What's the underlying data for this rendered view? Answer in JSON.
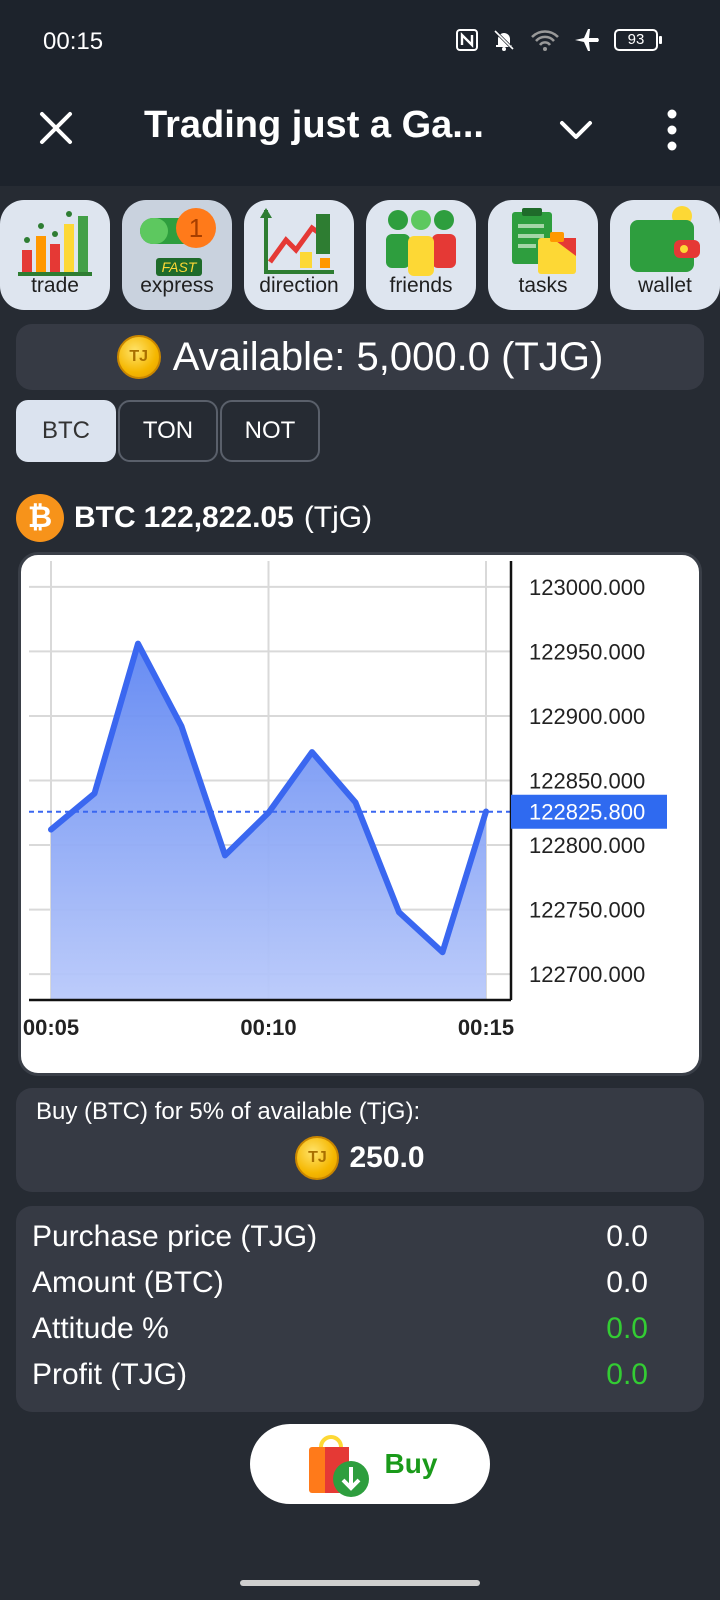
{
  "status_bar": {
    "time": "00:15",
    "battery": "93"
  },
  "header": {
    "title": "Trading just a Ga..."
  },
  "tabs": [
    {
      "label": "trade",
      "icon": "bar-chart-icon"
    },
    {
      "label": "express",
      "icon": "fast-express-icon",
      "badge": "1",
      "badge_text": "FAST"
    },
    {
      "label": "direction",
      "icon": "direction-chart-icon"
    },
    {
      "label": "friends",
      "icon": "friends-icon"
    },
    {
      "label": "tasks",
      "icon": "tasks-icon"
    },
    {
      "label": "wallet",
      "icon": "wallet-icon"
    }
  ],
  "coin_symbol": "TJG",
  "available": {
    "text": "Available: 5,000.0 (TJG)"
  },
  "assets": [
    "BTC",
    "TON",
    "NOT"
  ],
  "price": {
    "symbol": "BTC",
    "value": "122,822.05",
    "unit": "(TjG)"
  },
  "chart_data": {
    "type": "area",
    "x": [
      "00:05",
      "00:06",
      "00:07",
      "00:08",
      "00:09",
      "00:10",
      "00:11",
      "00:12",
      "00:13",
      "00:14",
      "00:15"
    ],
    "values": [
      122812,
      122840,
      122956,
      122892,
      122792,
      122825,
      122872,
      122833,
      122748,
      122717,
      122826
    ],
    "x_tick_labels": [
      "00:05",
      "00:10",
      "00:15"
    ],
    "y_tick_labels": [
      "123000.000",
      "122950.000",
      "122900.000",
      "122850.000",
      "122800.000",
      "122750.000",
      "122700.000"
    ],
    "ylim": [
      122680,
      123020
    ],
    "current_value": "122825.800",
    "current": 122825.8,
    "grid": true,
    "line_color": "#3a67f0",
    "fill_color": "#8eaaf7"
  },
  "buy_section": {
    "label": "Buy (BTC) for 5% of available (TjG):",
    "amount": "250.0"
  },
  "stats": [
    {
      "label": "Purchase price (TJG)",
      "value": "0.0",
      "highlight": false
    },
    {
      "label": "Amount (BTC)",
      "value": "0.0",
      "highlight": false
    },
    {
      "label": "Attitude %",
      "value": "0.0",
      "highlight": true
    },
    {
      "label": "Profit (TJG)",
      "value": "0.0",
      "highlight": true
    }
  ],
  "buy_button": {
    "label": "Buy"
  }
}
